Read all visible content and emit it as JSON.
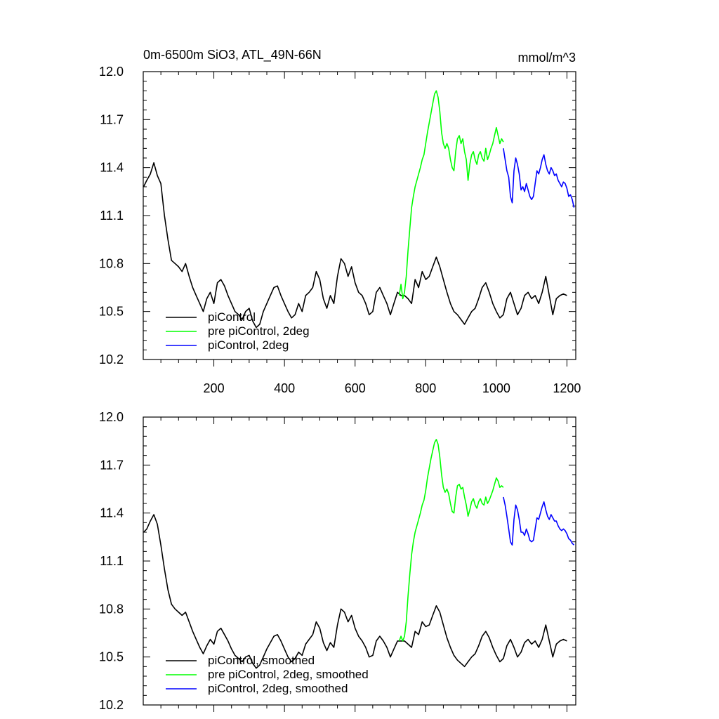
{
  "chart_data": [
    {
      "type": "line",
      "title": "0m-6500m SiO3, ATL_49N-66N",
      "units": "mmol/m^3",
      "xlabel": "",
      "ylabel": "",
      "xlim": [
        0,
        1225
      ],
      "ylim": [
        10.2,
        12.0
      ],
      "x_ticks": [
        "200",
        "400",
        "600",
        "800",
        "1000",
        "1200"
      ],
      "y_ticks": [
        "10.2",
        "10.5",
        "10.8",
        "11.1",
        "11.4",
        "11.7",
        "12.0"
      ],
      "legend_position": "bottom-left",
      "grid": false,
      "series": [
        {
          "name": "piControl",
          "color": "#000000",
          "x": [
            1,
            10,
            20,
            30,
            40,
            50,
            60,
            70,
            80,
            90,
            100,
            110,
            120,
            130,
            140,
            150,
            160,
            170,
            180,
            190,
            200,
            210,
            220,
            230,
            240,
            250,
            260,
            270,
            280,
            290,
            300,
            310,
            320,
            330,
            340,
            350,
            360,
            370,
            380,
            390,
            400,
            410,
            420,
            430,
            440,
            450,
            460,
            470,
            480,
            490,
            500,
            510,
            520,
            530,
            540,
            550,
            560,
            570,
            580,
            590,
            600,
            610,
            620,
            630,
            640,
            650,
            660,
            670,
            680,
            690,
            700,
            710,
            720,
            730,
            740,
            750,
            760,
            770,
            780,
            790,
            800,
            810,
            820,
            830,
            840,
            850,
            860,
            870,
            880,
            890,
            900,
            910,
            920,
            930,
            940,
            950,
            960,
            970,
            980,
            990,
            1000,
            1010,
            1020,
            1030,
            1040,
            1050,
            1060,
            1070,
            1080,
            1090,
            1100,
            1110,
            1120,
            1130,
            1140,
            1150,
            1160,
            1170,
            1180,
            1190,
            1200
          ],
          "y": [
            11.28,
            11.32,
            11.36,
            11.43,
            11.35,
            11.3,
            11.1,
            10.95,
            10.82,
            10.8,
            10.78,
            10.75,
            10.8,
            10.72,
            10.65,
            10.6,
            10.55,
            10.5,
            10.58,
            10.62,
            10.55,
            10.68,
            10.7,
            10.66,
            10.6,
            10.55,
            10.5,
            10.48,
            10.45,
            10.5,
            10.52,
            10.44,
            10.4,
            10.42,
            10.5,
            10.55,
            10.6,
            10.65,
            10.66,
            10.6,
            10.55,
            10.5,
            10.46,
            10.48,
            10.55,
            10.5,
            10.6,
            10.62,
            10.65,
            10.75,
            10.7,
            10.58,
            10.52,
            10.6,
            10.55,
            10.72,
            10.83,
            10.8,
            10.72,
            10.78,
            10.68,
            10.62,
            10.6,
            10.55,
            10.48,
            10.5,
            10.62,
            10.65,
            10.6,
            10.55,
            10.48,
            10.55,
            10.62,
            10.6,
            10.6,
            10.58,
            10.55,
            10.7,
            10.65,
            10.75,
            10.7,
            10.72,
            10.78,
            10.84,
            10.78,
            10.7,
            10.62,
            10.55,
            10.5,
            10.48,
            10.45,
            10.42,
            10.46,
            10.5,
            10.52,
            10.58,
            10.65,
            10.68,
            10.62,
            10.55,
            10.5,
            10.46,
            10.48,
            10.58,
            10.62,
            10.55,
            10.48,
            10.52,
            10.6,
            10.62,
            10.58,
            10.6,
            10.55,
            10.62,
            10.72,
            10.6,
            10.48,
            10.58,
            10.6,
            10.61,
            10.6
          ]
        },
        {
          "name": "pre piControl, 2deg",
          "color": "#00ff00",
          "x": [
            725,
            730,
            735,
            740,
            745,
            750,
            755,
            760,
            765,
            770,
            775,
            780,
            785,
            790,
            795,
            800,
            805,
            810,
            815,
            820,
            825,
            830,
            835,
            840,
            845,
            850,
            855,
            860,
            865,
            870,
            875,
            880,
            885,
            890,
            895,
            900,
            905,
            910,
            915,
            920,
            925,
            930,
            935,
            940,
            945,
            950,
            955,
            960,
            965,
            970,
            975,
            980,
            985,
            990,
            995,
            1000,
            1005,
            1010,
            1015,
            1020
          ],
          "y": [
            10.6,
            10.67,
            10.58,
            10.62,
            10.72,
            10.88,
            11.02,
            11.15,
            11.22,
            11.28,
            11.32,
            11.36,
            11.4,
            11.45,
            11.48,
            11.55,
            11.62,
            11.68,
            11.74,
            11.8,
            11.86,
            11.88,
            11.84,
            11.75,
            11.62,
            11.55,
            11.52,
            11.55,
            11.52,
            11.45,
            11.4,
            11.38,
            11.5,
            11.58,
            11.6,
            11.55,
            11.58,
            11.5,
            11.45,
            11.32,
            11.42,
            11.48,
            11.5,
            11.45,
            11.42,
            11.48,
            11.5,
            11.46,
            11.44,
            11.52,
            11.45,
            11.48,
            11.52,
            11.55,
            11.6,
            11.65,
            11.6,
            11.55,
            11.58,
            11.56
          ]
        },
        {
          "name": "piControl, 2deg",
          "color": "#0000ff",
          "x": [
            1020,
            1025,
            1030,
            1035,
            1040,
            1045,
            1050,
            1055,
            1060,
            1065,
            1070,
            1075,
            1080,
            1085,
            1090,
            1095,
            1100,
            1105,
            1110,
            1115,
            1120,
            1125,
            1130,
            1135,
            1140,
            1145,
            1150,
            1155,
            1160,
            1165,
            1170,
            1175,
            1180,
            1185,
            1190,
            1195,
            1200,
            1205,
            1210,
            1215,
            1220
          ],
          "y": [
            11.52,
            11.45,
            11.38,
            11.34,
            11.22,
            11.18,
            11.38,
            11.46,
            11.42,
            11.36,
            11.26,
            11.28,
            11.25,
            11.3,
            11.26,
            11.22,
            11.2,
            11.22,
            11.3,
            11.38,
            11.36,
            11.4,
            11.45,
            11.48,
            11.42,
            11.38,
            11.36,
            11.4,
            11.38,
            11.35,
            11.36,
            11.32,
            11.3,
            11.28,
            11.31,
            11.3,
            11.27,
            11.22,
            11.23,
            11.2,
            11.15
          ]
        }
      ]
    },
    {
      "type": "line",
      "title": "",
      "xlabel": "",
      "ylabel": "",
      "xlim": [
        0,
        1225
      ],
      "ylim": [
        10.2,
        12.0
      ],
      "x_ticks": [],
      "y_ticks": [
        "10.2",
        "10.5",
        "10.8",
        "11.1",
        "11.4",
        "11.7",
        "12.0"
      ],
      "legend_position": "bottom-left",
      "grid": false,
      "series": [
        {
          "name": "piControl, smoothed",
          "color": "#000000",
          "x": [
            1,
            10,
            20,
            30,
            40,
            50,
            60,
            70,
            80,
            90,
            100,
            110,
            120,
            130,
            140,
            150,
            160,
            170,
            180,
            190,
            200,
            210,
            220,
            230,
            240,
            250,
            260,
            270,
            280,
            290,
            300,
            310,
            320,
            330,
            340,
            350,
            360,
            370,
            380,
            390,
            400,
            410,
            420,
            430,
            440,
            450,
            460,
            470,
            480,
            490,
            500,
            510,
            520,
            530,
            540,
            550,
            560,
            570,
            580,
            590,
            600,
            610,
            620,
            630,
            640,
            650,
            660,
            670,
            680,
            690,
            700,
            710,
            720,
            730,
            740,
            750,
            760,
            770,
            780,
            790,
            800,
            810,
            820,
            830,
            840,
            850,
            860,
            870,
            880,
            890,
            900,
            910,
            920,
            930,
            940,
            950,
            960,
            970,
            980,
            990,
            1000,
            1010,
            1020,
            1030,
            1040,
            1050,
            1060,
            1070,
            1080,
            1090,
            1100,
            1110,
            1120,
            1130,
            1140,
            1150,
            1160,
            1170,
            1180,
            1190,
            1200
          ],
          "y": [
            11.28,
            11.3,
            11.35,
            11.39,
            11.33,
            11.2,
            11.05,
            10.92,
            10.83,
            10.8,
            10.78,
            10.76,
            10.78,
            10.72,
            10.66,
            10.61,
            10.56,
            10.52,
            10.57,
            10.61,
            10.58,
            10.66,
            10.68,
            10.64,
            10.6,
            10.55,
            10.51,
            10.49,
            10.47,
            10.5,
            10.51,
            10.46,
            10.43,
            10.45,
            10.5,
            10.55,
            10.59,
            10.63,
            10.64,
            10.6,
            10.55,
            10.5,
            10.47,
            10.49,
            10.53,
            10.51,
            10.58,
            10.61,
            10.64,
            10.72,
            10.68,
            10.59,
            10.54,
            10.59,
            10.56,
            10.7,
            10.8,
            10.78,
            10.72,
            10.76,
            10.68,
            10.63,
            10.6,
            10.56,
            10.5,
            10.51,
            10.6,
            10.63,
            10.6,
            10.56,
            10.5,
            10.55,
            10.6,
            10.6,
            10.6,
            10.58,
            10.56,
            10.66,
            10.64,
            10.72,
            10.69,
            10.7,
            10.76,
            10.82,
            10.78,
            10.7,
            10.62,
            10.56,
            10.51,
            10.48,
            10.46,
            10.44,
            10.47,
            10.5,
            10.52,
            10.57,
            10.63,
            10.66,
            10.62,
            10.56,
            10.51,
            10.47,
            10.49,
            10.57,
            10.61,
            10.56,
            10.5,
            10.53,
            10.59,
            10.61,
            10.58,
            10.6,
            10.56,
            10.61,
            10.7,
            10.6,
            10.5,
            10.58,
            10.6,
            10.61,
            10.6
          ]
        },
        {
          "name": "pre piControl, 2deg, smoothed",
          "color": "#00ff00",
          "x": [
            725,
            730,
            735,
            740,
            745,
            750,
            755,
            760,
            765,
            770,
            775,
            780,
            785,
            790,
            795,
            800,
            805,
            810,
            815,
            820,
            825,
            830,
            835,
            840,
            845,
            850,
            855,
            860,
            865,
            870,
            875,
            880,
            885,
            890,
            895,
            900,
            905,
            910,
            915,
            920,
            925,
            930,
            935,
            940,
            945,
            950,
            955,
            960,
            965,
            970,
            975,
            980,
            985,
            990,
            995,
            1000,
            1005,
            1010,
            1015,
            1020
          ],
          "y": [
            10.6,
            10.63,
            10.6,
            10.63,
            10.72,
            10.88,
            11.02,
            11.14,
            11.22,
            11.28,
            11.32,
            11.36,
            11.4,
            11.45,
            11.48,
            11.54,
            11.62,
            11.68,
            11.74,
            11.79,
            11.84,
            11.86,
            11.83,
            11.75,
            11.64,
            11.56,
            11.53,
            11.55,
            11.52,
            11.46,
            11.41,
            11.4,
            11.5,
            11.57,
            11.58,
            11.55,
            11.56,
            11.5,
            11.45,
            11.38,
            11.42,
            11.47,
            11.49,
            11.45,
            11.43,
            11.47,
            11.49,
            11.46,
            11.45,
            11.5,
            11.46,
            11.48,
            11.51,
            11.54,
            11.58,
            11.62,
            11.6,
            11.56,
            11.57,
            11.56
          ]
        },
        {
          "name": "piControl, 2deg, smoothed",
          "color": "#0000ff",
          "x": [
            1020,
            1025,
            1030,
            1035,
            1040,
            1045,
            1050,
            1055,
            1060,
            1065,
            1070,
            1075,
            1080,
            1085,
            1090,
            1095,
            1100,
            1105,
            1110,
            1115,
            1120,
            1125,
            1130,
            1135,
            1140,
            1145,
            1150,
            1155,
            1160,
            1165,
            1170,
            1175,
            1180,
            1185,
            1190,
            1195,
            1200,
            1205,
            1210,
            1215,
            1220
          ],
          "y": [
            11.5,
            11.45,
            11.38,
            11.3,
            11.22,
            11.2,
            11.36,
            11.45,
            11.42,
            11.36,
            11.28,
            11.28,
            11.26,
            11.3,
            11.27,
            11.23,
            11.22,
            11.23,
            11.3,
            11.37,
            11.36,
            11.4,
            11.44,
            11.47,
            11.42,
            11.38,
            11.36,
            11.39,
            11.37,
            11.35,
            11.35,
            11.32,
            11.3,
            11.29,
            11.3,
            11.29,
            11.27,
            11.24,
            11.23,
            11.21,
            11.2
          ]
        }
      ]
    }
  ]
}
